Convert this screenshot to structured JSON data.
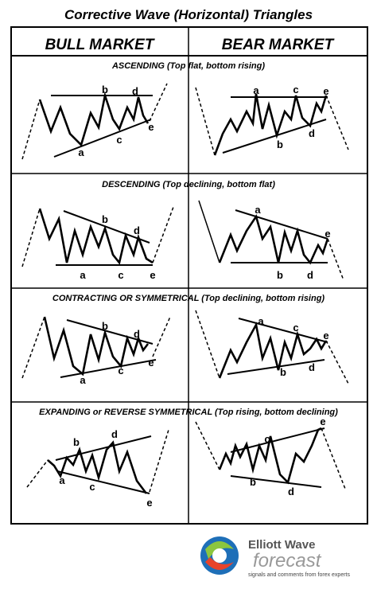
{
  "title": "Corrective Wave (Horizontal) Triangles",
  "columns": [
    "BULL MARKET",
    "BEAR MARKET"
  ],
  "sections": [
    {
      "label": "ASCENDING (Top flat, bottom rising)",
      "bull": [
        "a",
        "b",
        "c",
        "d",
        "e"
      ],
      "bear": [
        "a",
        "b",
        "c",
        "d",
        "e"
      ]
    },
    {
      "label": "DESCENDING (Top declining, bottom flat)",
      "bull": [
        "a",
        "b",
        "c",
        "d",
        "e"
      ],
      "bear": [
        "a",
        "b",
        "d",
        "e"
      ]
    },
    {
      "label": "CONTRACTING OR SYMMETRICAL (Top declining, bottom rising)",
      "bull": [
        "a",
        "b",
        "c",
        "d",
        "e"
      ],
      "bear": [
        "a",
        "b",
        "c",
        "d",
        "e"
      ]
    },
    {
      "label": "EXPANDING or REVERSE SYMMETRICAL (Top rising, bottom declining)",
      "bull": [
        "a",
        "b",
        "c",
        "d",
        "e"
      ],
      "bear": [
        "b",
        "c",
        "d",
        "e"
      ]
    }
  ],
  "logo": {
    "name": "Elliott Wave",
    "script": "forecast",
    "tagline": "signals and comments from forex experts"
  }
}
